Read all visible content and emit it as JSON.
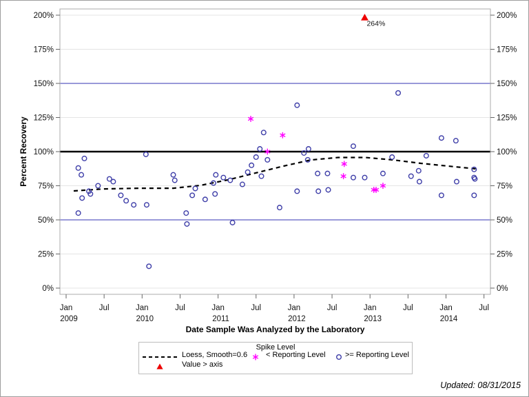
{
  "footer": {
    "updated": "Updated: 08/31/2015"
  },
  "colors": {
    "grid": "#e4e4e4",
    "frame": "#ababab",
    "tick": "#666666",
    "reference_blue": "#3333b3",
    "reference_black": "#000000",
    "circle_marker": "#3e3ea8",
    "asterisk_marker": "#ff00ff",
    "triangle_marker": "#ed0000",
    "loess_line": "#000000"
  },
  "chart_data": {
    "type": "scatter",
    "title": "",
    "xlabel": "Date Sample Was Analyzed by the Laboratory",
    "ylabel": "Percent Recovery",
    "grid": "on",
    "legend_position": "bottom",
    "x_axis": {
      "range_years": [
        2008.92,
        2014.68
      ],
      "ticks": [
        {
          "x": 2009.0,
          "month": "Jan",
          "year": "2009"
        },
        {
          "x": 2009.5,
          "month": "Jul",
          "year": ""
        },
        {
          "x": 2010.0,
          "month": "Jan",
          "year": "2010"
        },
        {
          "x": 2010.5,
          "month": "Jul",
          "year": ""
        },
        {
          "x": 2011.0,
          "month": "Jan",
          "year": "2011"
        },
        {
          "x": 2011.5,
          "month": "Jul",
          "year": ""
        },
        {
          "x": 2012.0,
          "month": "Jan",
          "year": "2012"
        },
        {
          "x": 2012.5,
          "month": "Jul",
          "year": ""
        },
        {
          "x": 2013.0,
          "month": "Jan",
          "year": "2013"
        },
        {
          "x": 2013.5,
          "month": "Jul",
          "year": ""
        },
        {
          "x": 2014.0,
          "month": "Jan",
          "year": "2014"
        },
        {
          "x": 2014.5,
          "month": "Jul",
          "year": ""
        }
      ]
    },
    "y_axis": {
      "min": 0,
      "max": 200,
      "unit": "%",
      "ticks": [
        0,
        25,
        50,
        75,
        100,
        125,
        150,
        175,
        200
      ],
      "tick_labels": [
        "0%",
        "25%",
        "50%",
        "75%",
        "100%",
        "125%",
        "150%",
        "175%",
        "200%"
      ],
      "mirrored_right": true
    },
    "reference_lines": [
      {
        "value": 50,
        "color": "#3333b3",
        "width": 1
      },
      {
        "value": 100,
        "color": "#000000",
        "width": 2.5
      },
      {
        "value": 150,
        "color": "#3333b3",
        "width": 1
      }
    ],
    "series": [
      {
        "name": "Loess, Smooth=0.6",
        "marker": "none",
        "line": "dashed",
        "color": "#000000",
        "points": [
          [
            2009.1,
            71.2
          ],
          [
            2009.5,
            72.7
          ],
          [
            2009.95,
            73.2
          ],
          [
            2010.41,
            73.2
          ],
          [
            2010.77,
            75.3
          ],
          [
            2011.13,
            79.3
          ],
          [
            2011.49,
            84.3
          ],
          [
            2011.86,
            89.4
          ],
          [
            2012.22,
            93.9
          ],
          [
            2012.58,
            95.7
          ],
          [
            2012.94,
            95.7
          ],
          [
            2013.31,
            93.9
          ],
          [
            2013.67,
            91.4
          ],
          [
            2014.03,
            89.4
          ],
          [
            2014.39,
            87.4
          ]
        ]
      },
      {
        "name": "< Reporting Level",
        "marker": "asterisk",
        "line": "none",
        "color": "#ff00ff",
        "points": [
          [
            2011.43,
            124
          ],
          [
            2011.65,
            100
          ],
          [
            2011.85,
            112
          ],
          [
            2012.65,
            82
          ],
          [
            2012.66,
            91
          ],
          [
            2013.05,
            72
          ],
          [
            2013.08,
            72
          ],
          [
            2013.17,
            75
          ]
        ]
      },
      {
        "name": ">= Reporting Level",
        "marker": "circle",
        "line": "none",
        "color": "#3e3ea8",
        "points": [
          [
            2009.16,
            88
          ],
          [
            2009.2,
            83
          ],
          [
            2009.21,
            66
          ],
          [
            2009.16,
            55
          ],
          [
            2009.24,
            95
          ],
          [
            2009.3,
            71
          ],
          [
            2009.32,
            69
          ],
          [
            2009.42,
            75
          ],
          [
            2009.57,
            80
          ],
          [
            2009.62,
            78
          ],
          [
            2009.72,
            68
          ],
          [
            2009.79,
            64
          ],
          [
            2009.89,
            61
          ],
          [
            2010.05,
            98
          ],
          [
            2010.06,
            61
          ],
          [
            2010.09,
            16
          ],
          [
            2010.41,
            83
          ],
          [
            2010.43,
            79
          ],
          [
            2010.58,
            55
          ],
          [
            2010.59,
            47
          ],
          [
            2010.66,
            68
          ],
          [
            2010.7,
            73
          ],
          [
            2010.83,
            65
          ],
          [
            2010.94,
            77
          ],
          [
            2010.96,
            69
          ],
          [
            2010.97,
            83
          ],
          [
            2011.07,
            81
          ],
          [
            2011.16,
            79
          ],
          [
            2011.19,
            48
          ],
          [
            2011.32,
            76
          ],
          [
            2011.39,
            85
          ],
          [
            2011.44,
            90
          ],
          [
            2011.5,
            96
          ],
          [
            2011.55,
            102
          ],
          [
            2011.57,
            82
          ],
          [
            2011.6,
            114
          ],
          [
            2011.65,
            94
          ],
          [
            2011.81,
            59
          ],
          [
            2012.04,
            134
          ],
          [
            2012.04,
            71
          ],
          [
            2012.13,
            99
          ],
          [
            2012.18,
            94
          ],
          [
            2012.19,
            102
          ],
          [
            2012.31,
            84
          ],
          [
            2012.32,
            71
          ],
          [
            2012.44,
            84
          ],
          [
            2012.45,
            72
          ],
          [
            2012.78,
            104
          ],
          [
            2012.78,
            81
          ],
          [
            2012.93,
            81
          ],
          [
            2013.17,
            84
          ],
          [
            2013.29,
            96
          ],
          [
            2013.37,
            143
          ],
          [
            2013.54,
            82
          ],
          [
            2013.64,
            86
          ],
          [
            2013.65,
            78
          ],
          [
            2013.74,
            97
          ],
          [
            2013.94,
            110
          ],
          [
            2013.94,
            68
          ],
          [
            2014.13,
            108
          ],
          [
            2014.14,
            78
          ],
          [
            2014.37,
            87
          ],
          [
            2014.37,
            81
          ],
          [
            2014.38,
            80
          ],
          [
            2014.37,
            68
          ]
        ]
      },
      {
        "name": "Value > axis",
        "marker": "triangle",
        "line": "none",
        "color": "#ed0000",
        "clip_at": 200,
        "annotation": "264%",
        "points": [
          [
            2012.93,
            264
          ]
        ]
      }
    ],
    "legend": {
      "title": "Spike Level",
      "entries": [
        {
          "label": "Loess, Smooth=0.6",
          "marker": "dashed-line"
        },
        {
          "label": "< Reporting Level",
          "marker": "asterisk"
        },
        {
          "label": ">= Reporting Level",
          "marker": "circle"
        },
        {
          "label": "Value > axis",
          "marker": "triangle"
        }
      ]
    }
  }
}
